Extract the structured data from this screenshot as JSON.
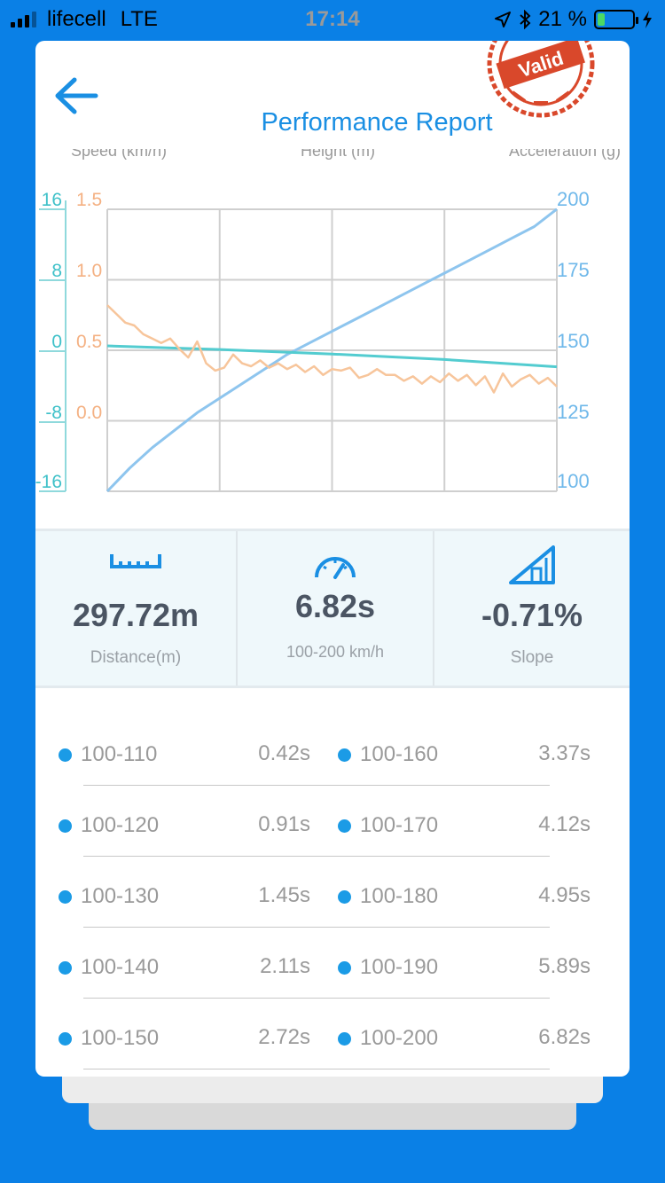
{
  "status_bar": {
    "carrier": "lifecell",
    "network": "LTE",
    "time": "17:14",
    "battery_percent": "21 %",
    "battery_level": 0.21
  },
  "header": {
    "title": "Performance Report",
    "stamp_text": "Valid",
    "colors": {
      "accent": "#1a8fe3",
      "stamp": "#d9482b"
    }
  },
  "chart_data": {
    "type": "line",
    "legend": [
      "Speed (km/h)",
      "Height (m)",
      "Acceleration (g)"
    ],
    "axes": {
      "left_outer": {
        "ticks": [
          "16",
          "8",
          "0",
          "-8",
          "-16"
        ],
        "range": [
          -16,
          16
        ],
        "color": "#3fc1c9"
      },
      "left_inner": {
        "ticks": [
          "1.5",
          "1.0",
          "0.5",
          "0.0"
        ],
        "range": [
          -0.5,
          1.5
        ],
        "color": "#f4b183"
      },
      "right": {
        "ticks": [
          "200",
          "175",
          "150",
          "125",
          "100"
        ],
        "range": [
          100,
          200
        ],
        "color": "#6fb8ea"
      }
    },
    "grid": true,
    "series": [
      {
        "color": "#8ec5ee",
        "axis": "right",
        "x": [
          0,
          0.05,
          0.1,
          0.15,
          0.2,
          0.25,
          0.3,
          0.35,
          0.4,
          0.45,
          0.5,
          0.55,
          0.6,
          0.65,
          0.7,
          0.75,
          0.8,
          0.85,
          0.9,
          0.95,
          1
        ],
        "y": [
          100,
          108,
          115,
          121,
          127,
          132,
          137,
          142,
          147,
          151,
          155,
          159,
          163,
          167,
          171,
          175,
          179,
          183,
          187,
          191,
          197
        ]
      },
      {
        "color": "#53ccd0",
        "axis": "left_outer",
        "x": [
          0,
          0.25,
          0.5,
          0.75,
          1
        ],
        "y": [
          0,
          -0.4,
          -0.9,
          -1.5,
          -2.3
        ]
      },
      {
        "color": "#f7c59b",
        "axis": "left_inner",
        "x": [
          0,
          0.02,
          0.04,
          0.06,
          0.08,
          0.1,
          0.12,
          0.14,
          0.16,
          0.18,
          0.2,
          0.22,
          0.24,
          0.26,
          0.28,
          0.3,
          0.32,
          0.34,
          0.36,
          0.38,
          0.4,
          0.42,
          0.44,
          0.46,
          0.48,
          0.5,
          0.52,
          0.54,
          0.56,
          0.58,
          0.6,
          0.62,
          0.64,
          0.66,
          0.68,
          0.7,
          0.72,
          0.74,
          0.76,
          0.78,
          0.8,
          0.82,
          0.84,
          0.86,
          0.88,
          0.9,
          0.92,
          0.94,
          0.96,
          0.98,
          1
        ],
        "y": [
          0.78,
          0.72,
          0.66,
          0.64,
          0.58,
          0.55,
          0.52,
          0.55,
          0.48,
          0.42,
          0.53,
          0.38,
          0.33,
          0.35,
          0.44,
          0.38,
          0.36,
          0.4,
          0.35,
          0.38,
          0.34,
          0.37,
          0.32,
          0.36,
          0.3,
          0.34,
          0.33,
          0.35,
          0.28,
          0.3,
          0.34,
          0.3,
          0.3,
          0.26,
          0.29,
          0.24,
          0.29,
          0.25,
          0.31,
          0.26,
          0.3,
          0.23,
          0.29,
          0.18,
          0.31,
          0.22,
          0.27,
          0.3,
          0.24,
          0.28,
          0.22
        ]
      }
    ]
  },
  "stats": [
    {
      "icon": "ruler-icon",
      "value": "297.72m",
      "label": "Distance(m)"
    },
    {
      "icon": "speedometer-icon",
      "value": "6.82s",
      "label": "100-200 km/h"
    },
    {
      "icon": "slope-icon",
      "value": "-0.71%",
      "label": "Slope"
    }
  ],
  "splits": [
    {
      "left_range": "100-110",
      "left_time": "0.42s",
      "right_range": "100-160",
      "right_time": "3.37s"
    },
    {
      "left_range": "100-120",
      "left_time": "0.91s",
      "right_range": "100-170",
      "right_time": "4.12s"
    },
    {
      "left_range": "100-130",
      "left_time": "1.45s",
      "right_range": "100-180",
      "right_time": "4.95s"
    },
    {
      "left_range": "100-140",
      "left_time": "2.11s",
      "right_range": "100-190",
      "right_time": "5.89s"
    },
    {
      "left_range": "100-150",
      "left_time": "2.72s",
      "right_range": "100-200",
      "right_time": "6.82s"
    }
  ]
}
